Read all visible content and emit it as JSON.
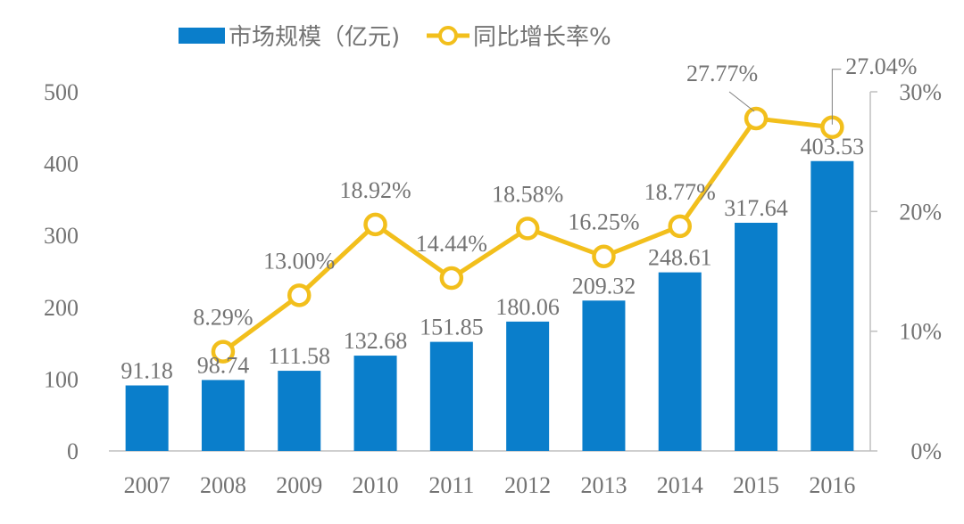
{
  "chart_data": {
    "type": "bar+line",
    "categories": [
      "2007",
      "2008",
      "2009",
      "2010",
      "2011",
      "2012",
      "2013",
      "2014",
      "2015",
      "2016"
    ],
    "series": [
      {
        "name": "市场规模（亿元)",
        "type": "bar",
        "axis": "left",
        "color": "#0a7ecb",
        "values": [
          91.18,
          98.74,
          111.58,
          132.68,
          151.85,
          180.06,
          209.32,
          248.61,
          317.64,
          403.53
        ],
        "labels": [
          "91.18",
          "98.74",
          "111.58",
          "132.68",
          "151.85",
          "180.06",
          "209.32",
          "248.61",
          "317.64",
          "403.53"
        ]
      },
      {
        "name": "同比增长率%",
        "type": "line",
        "axis": "right",
        "color": "#f2bf1c",
        "values": [
          null,
          8.29,
          13.0,
          18.92,
          14.44,
          18.58,
          16.25,
          18.77,
          27.77,
          27.04
        ],
        "labels": [
          "",
          "8.29%",
          "13.00%",
          "18.92%",
          "14.44%",
          "18.58%",
          "16.25%",
          "18.77%",
          "27.77%",
          "27.04%"
        ]
      }
    ],
    "ylim": [
      0,
      500
    ],
    "yticks": [
      "0",
      "100",
      "200",
      "300",
      "400",
      "500"
    ],
    "y2lim": [
      0,
      30
    ],
    "y2ticks": [
      "0%",
      "10%",
      "20%",
      "30%"
    ],
    "grid": false,
    "legend": "top"
  }
}
